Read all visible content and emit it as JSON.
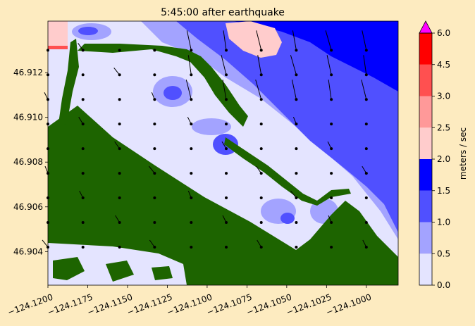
{
  "chart_data": {
    "type": "heatmap",
    "title": "5:45:00 after earthquake",
    "xlim": [
      -124.12,
      -124.098
    ],
    "ylim": [
      46.9025,
      46.9143
    ],
    "x_ticks": [
      -124.12,
      -124.1175,
      -124.115,
      -124.1125,
      -124.11,
      -124.1075,
      -124.105,
      -124.1025,
      -124.1
    ],
    "x_tick_labels": [
      "−124.1200",
      "−124.1175",
      "−124.1150",
      "−124.1125",
      "−124.1100",
      "−124.1075",
      "−124.1050",
      "−124.1025",
      "−124.1000"
    ],
    "y_ticks": [
      46.904,
      46.906,
      46.908,
      46.91,
      46.912
    ],
    "y_tick_labels": [
      "46.904",
      "46.906",
      "46.908",
      "46.910",
      "46.912"
    ],
    "colorbar": {
      "label": "meters / sec",
      "levels": [
        0,
        0.5,
        1.0,
        1.5,
        2.0,
        2.5,
        3.0,
        4.5,
        6.0
      ],
      "tick_labels": [
        "0.0",
        "0.5",
        "1.0",
        "1.5",
        "2.0",
        "2.5",
        "3.0",
        "4.5",
        "6.0"
      ],
      "colors": [
        "#e4e4ff",
        "#a3a3ff",
        "#5050ff",
        "#0000ff",
        "#ffcccc",
        "#ff9999",
        "#ff5050",
        "#ff0000"
      ],
      "over_color": "#ff00ff"
    },
    "land_color": "#1d6400"
  }
}
